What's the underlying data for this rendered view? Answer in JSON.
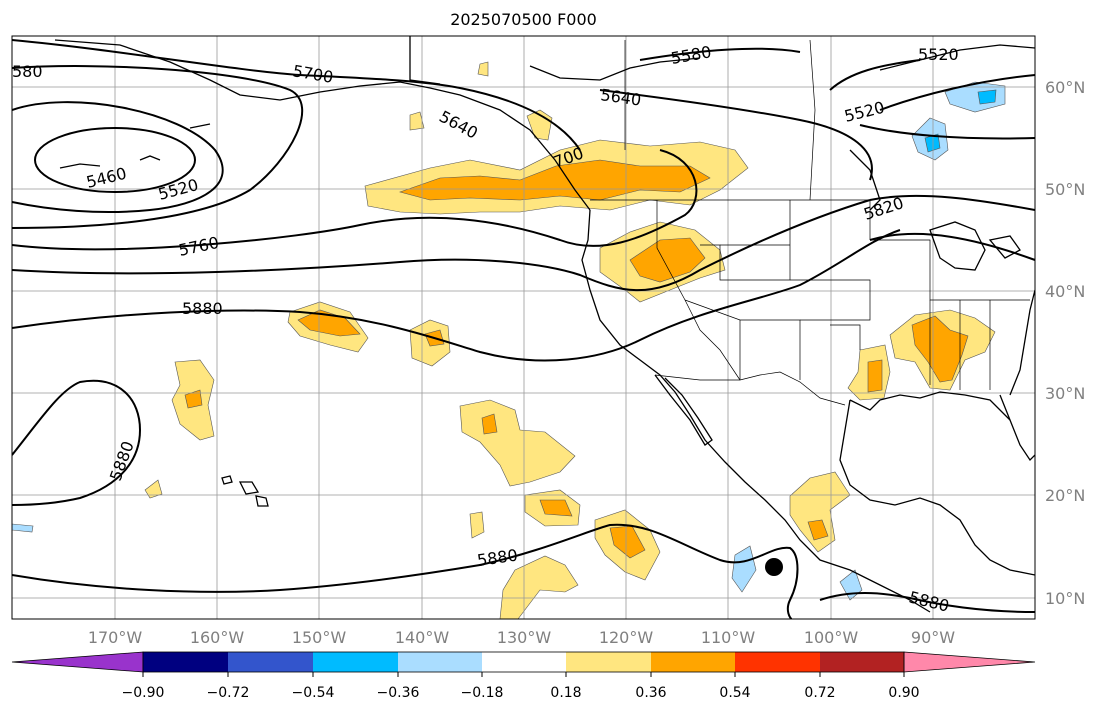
{
  "title": "2025070500 F000",
  "map": {
    "lon_ticks": [
      "170°W",
      "160°W",
      "150°W",
      "140°W",
      "130°W",
      "120°W",
      "110°W",
      "100°W",
      "90°W"
    ],
    "lat_ticks": [
      "60°N",
      "50°N",
      "40°N",
      "30°N",
      "20°N",
      "10°N"
    ],
    "contour_labels": [
      "5460",
      "5520",
      "5760",
      "5880",
      "5880",
      "580",
      "5700",
      "5640",
      "5640",
      "700",
      "5580",
      "5520",
      "5520",
      "5820",
      "5880",
      "5880"
    ]
  },
  "colorbar": {
    "ticks": [
      "−0.90",
      "−0.72",
      "−0.54",
      "−0.36",
      "−0.18",
      "0.18",
      "0.36",
      "0.54",
      "0.72",
      "0.90"
    ],
    "colors": [
      "#9933cc",
      "#000080",
      "#3355cc",
      "#00bbff",
      "#aaddff",
      "#ffffff",
      "#ffe680",
      "#ffa500",
      "#ff3300",
      "#b22222",
      "#ff88aa"
    ]
  },
  "marker": "black-dot"
}
